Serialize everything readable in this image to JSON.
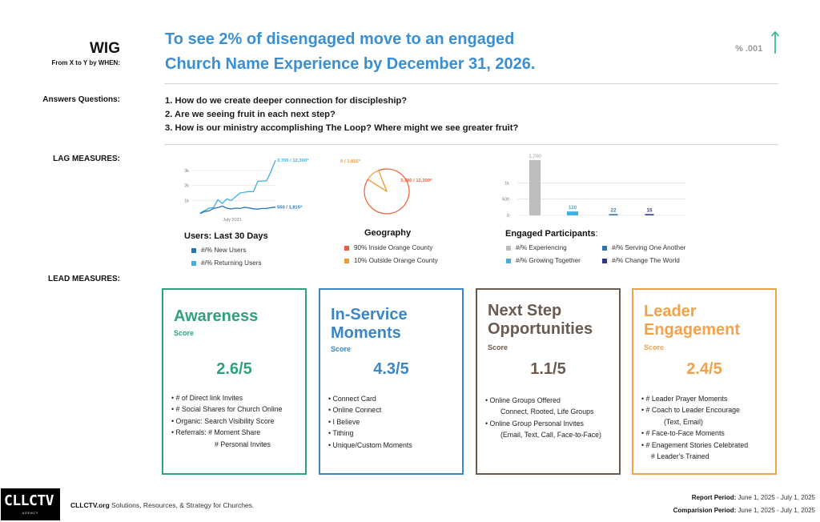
{
  "header": {
    "wig_label": "WIG",
    "wig_sub": "From X to Y by WHEN:",
    "goal_line1": "To see 2% of disengaged move to an engaged",
    "goal_line2": "Church Name Experience by December 31, 2026.",
    "metric": "% .001",
    "arrow_color": "#2bb08a"
  },
  "answers": {
    "label": "Answers Questions:",
    "questions": [
      "1. How do we create deeper connection for discipleship?",
      "2. Are we seeing fruit in each next step?",
      "3. How is our ministry accomplishing The Loop? Where might we see greater fruit?"
    ]
  },
  "lag": {
    "label": "LAG MEASURES:",
    "users": {
      "title": "Users: Last 30 Days",
      "legend": [
        {
          "label": "#/% New Users",
          "color": "#2a73b8"
        },
        {
          "label": "#/% Returning Users",
          "color": "#3fb0e0"
        }
      ]
    },
    "geography": {
      "title": "Geography",
      "legend": [
        {
          "label": "90% Inside Orange County",
          "color": "#ef5a3a"
        },
        {
          "label": "10% Outside Orange County",
          "color": "#f39a2e"
        }
      ]
    },
    "engaged": {
      "title": "Engaged Participants",
      "title_suffix": ":",
      "legend": [
        {
          "label": "#/% Experiencing",
          "color": "#bdbdbd"
        },
        {
          "label": "#/% Serving One Another",
          "color": "#2a73b8"
        },
        {
          "label": "#/% Growing Together",
          "color": "#3fb0e0"
        },
        {
          "label": "#/% Change The World",
          "color": "#2b3a8c"
        }
      ]
    }
  },
  "chart_data": [
    {
      "type": "line",
      "title": "",
      "x_tick_labels": [
        "July 2021"
      ],
      "y_tick_labels": [
        "1k",
        "2k",
        "3k"
      ],
      "ylim": [
        0,
        3700
      ],
      "grid": true,
      "series": [
        {
          "label": "3,700 / 12,300*",
          "color": "#3fb0e0",
          "values": [
            150,
            320,
            480,
            520,
            1050,
            800,
            1100,
            1000,
            1250,
            1500,
            1550,
            1600,
            1580,
            2280,
            2300,
            2320,
            2950,
            3700
          ]
        },
        {
          "label": "550 / 1,815*",
          "color": "#2a73b8",
          "values": [
            120,
            260,
            300,
            460,
            520,
            620,
            480,
            430,
            480,
            460,
            540,
            500,
            440,
            420,
            460,
            460,
            520,
            550
          ]
        }
      ]
    },
    {
      "type": "pie",
      "title": "",
      "slices": [
        {
          "label": "3,700 / 12,300*",
          "value": 90,
          "color": "#ef5a3a"
        },
        {
          "label": "550 / 1,815*",
          "value": 10,
          "color": "#f39a2e"
        }
      ]
    },
    {
      "type": "bar",
      "title": "",
      "y_tick_labels": [
        "0",
        "500",
        "1k"
      ],
      "ylim": [
        0,
        1700
      ],
      "grid": true,
      "categories": [
        "Experiencing",
        "Growing Together",
        "Serving One Another",
        "Change The World"
      ],
      "values": [
        1700,
        120,
        22,
        15
      ],
      "value_labels": [
        "1,700",
        "120",
        "22",
        "15"
      ],
      "colors": [
        "#bdbdbd",
        "#3fb0e0",
        "#2a73b8",
        "#2b3a8c"
      ]
    }
  ],
  "lead": {
    "label": "LEAD MEASURES:",
    "cards": [
      {
        "title": [
          "Awareness"
        ],
        "score_label": "Score",
        "score": "2.6/5",
        "color": "#2fa27d",
        "items": [
          "• # of Direct link Invites",
          "• # Social Shares for Church Online",
          "• Organic: Search Visibility Score",
          "• Referrals: # Moment Share",
          "# Personal Invites"
        ]
      },
      {
        "title": [
          "In-Service",
          "Moments"
        ],
        "score_label": "Score",
        "score": "4.3/5",
        "color": "#3b86c6",
        "items": [
          "• Connect Card",
          "• Online Connect",
          "• I Believe",
          "• Tithing",
          "• Unique/Custom Moments"
        ]
      },
      {
        "title": [
          "Next Step",
          "Opportunities"
        ],
        "score_label": "Score",
        "score": "1.1/5",
        "color": "#6b5a4d",
        "items": [
          "• Online Groups Offered",
          "Connect, Rooted, Life Groups",
          "• Online Group Personal Invites",
          "(Email, Text, Call, Face-to-Face)"
        ]
      },
      {
        "title": [
          "Leader",
          "Engagement"
        ],
        "score_label": "Score",
        "score": "2.4/5",
        "color": "#f1a24a",
        "items": [
          "• # Leader Prayer Moments",
          "• # Coach to Leader Encourage",
          "(Text, Email)",
          "• # Face-to-Face Moments",
          "• # Enagement Stories Celebrated",
          "# Leader's Trained"
        ]
      }
    ]
  },
  "footer": {
    "logo_text": "CLLCTV",
    "logo_sub": "AGENCY",
    "site": "CLLCTV.org",
    "tagline": " Solutions, Resources, & Strategy for Churches.",
    "report_label": "Report Period:",
    "report_value": " June 1, 2025 - July 1, 2025",
    "comparison_label": "Comparision Period:",
    "comparison_value": " June 1, 2025 - July 1, 2025"
  }
}
